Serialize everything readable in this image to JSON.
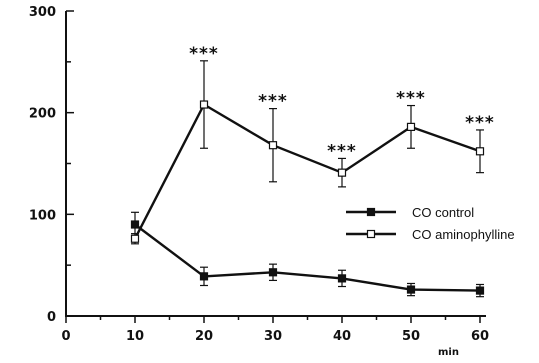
{
  "chart_data": {
    "type": "line",
    "title": "",
    "xlabel": "min",
    "ylabel": "",
    "xlim": [
      0,
      60
    ],
    "ylim": [
      0,
      300
    ],
    "x_ticks": [
      "0",
      "10",
      "20",
      "30",
      "40",
      "50",
      "60"
    ],
    "y_ticks": [
      "0",
      "100",
      "200",
      "300"
    ],
    "legend_position": "right",
    "grid": false,
    "series": [
      {
        "name": "CO control",
        "marker": "filled-square",
        "x": [
          10,
          20,
          30,
          40,
          50,
          60
        ],
        "y": [
          90,
          39,
          43,
          37,
          26,
          25
        ],
        "err": [
          12,
          9,
          8,
          8,
          6,
          6
        ]
      },
      {
        "name": "CO aminophylline",
        "marker": "open-square",
        "x": [
          10,
          20,
          30,
          40,
          50,
          60
        ],
        "y": [
          76,
          208,
          168,
          141,
          186,
          162
        ],
        "err": [
          5,
          43,
          36,
          14,
          21,
          21
        ]
      }
    ],
    "annotations": [
      {
        "x": 20,
        "text": "***"
      },
      {
        "x": 30,
        "text": "***"
      },
      {
        "x": 40,
        "text": "***"
      },
      {
        "x": 50,
        "text": "***"
      },
      {
        "x": 60,
        "text": "***"
      }
    ]
  }
}
